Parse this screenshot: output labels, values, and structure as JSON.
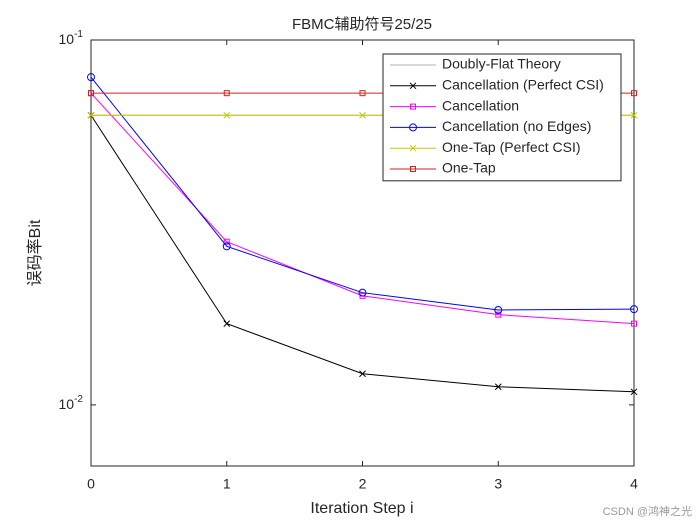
{
  "chart_data": {
    "type": "line",
    "title": "FBMC辅助符号25/25",
    "xlabel": "Iteration Step i",
    "ylabel": "误码率Bit",
    "x": [
      0,
      1,
      2,
      3,
      4
    ],
    "xlim": [
      0,
      4
    ],
    "xticks": [
      0,
      1,
      2,
      3,
      4
    ],
    "ylim": [
      0.0068,
      0.1
    ],
    "yscale": "log",
    "yticks": [
      {
        "value": 0.1,
        "label": "10-1"
      },
      {
        "value": 0.01,
        "label": "10-2"
      }
    ],
    "legend": "northeast",
    "series": [
      {
        "name": "Doubly-Flat Theory",
        "color": "#b0b0b0",
        "marker": "none",
        "values": [
          0.0622,
          0.0622,
          0.0622,
          0.0622,
          0.0622
        ]
      },
      {
        "name": "Cancellation (Perfect CSI)",
        "color": "#000000",
        "marker": "x",
        "values": [
          0.0622,
          0.0167,
          0.01217,
          0.01121,
          0.01086
        ]
      },
      {
        "name": "Cancellation",
        "color": "#ff00ff",
        "marker": "s",
        "values": [
          0.0715,
          0.028,
          0.0199,
          0.01767,
          0.0167
        ]
      },
      {
        "name": "Cancellation (no Edges)",
        "color": "#0000ff",
        "marker": "o",
        "values": [
          0.0791,
          0.0272,
          0.0203,
          0.0182,
          0.0183
        ]
      },
      {
        "name": "One-Tap (Perfect CSI)",
        "color": "#c8c800",
        "marker": "x",
        "values": [
          0.0622,
          0.0622,
          0.0622,
          0.0622,
          0.0622
        ]
      },
      {
        "name": "One-Tap",
        "color": "#d62020",
        "marker": "s",
        "values": [
          0.0715,
          0.0715,
          0.0715,
          0.0715,
          0.0715
        ]
      }
    ],
    "watermark": "CSDN @鸿神之光"
  }
}
